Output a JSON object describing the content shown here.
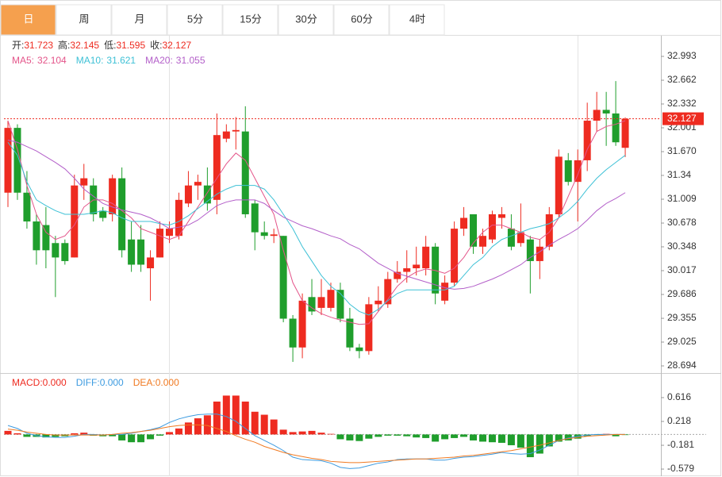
{
  "tabs": [
    "日",
    "周",
    "月",
    "5分",
    "15分",
    "30分",
    "60分",
    "4时"
  ],
  "selected_tab": 0,
  "chart_data": [
    {
      "type": "candlestick",
      "up_color": "#ee2b20",
      "down_color": "#1f9e2c",
      "info": [
        {
          "label": "开:",
          "value": 31.723
        },
        {
          "label": "高:",
          "value": 32.145
        },
        {
          "label": "低:",
          "value": 31.595
        },
        {
          "label": "收:",
          "value": 32.127
        }
      ],
      "last_price": 32.127,
      "ylim": [
        28.617,
        33.28
      ],
      "yticks": [
        32.993,
        32.662,
        32.332,
        32.001,
        {
          "value": 31.67,
          "label": "31.670"
        },
        31.34,
        31.009,
        30.678,
        30.348,
        30.017,
        29.686,
        29.355,
        29.025,
        28.694
      ],
      "open": [
        31.1,
        32.0,
        31.1,
        30.7,
        30.65,
        30.4,
        30.4,
        30.2,
        31.2,
        31.2,
        30.85,
        30.8,
        31.3,
        30.45,
        30.45,
        30.05,
        30.2,
        30.5,
        30.5,
        30.95,
        31.2,
        31.2,
        31.0,
        31.85,
        31.95,
        31.95,
        30.95,
        30.55,
        30.5,
        30.5,
        29.35,
        28.95,
        29.65,
        29.5,
        29.5,
        29.75,
        29.35,
        28.95,
        28.9,
        29.55,
        29.55,
        29.9,
        30.0,
        30.05,
        30.05,
        30.35,
        29.6,
        29.85,
        30.6,
        30.8,
        30.35,
        30.45,
        30.75,
        30.6,
        30.4,
        30.45,
        30.15,
        30.35,
        30.8,
        31.55,
        31.25,
        31.55,
        32.1,
        32.25,
        32.2,
        31.723
      ],
      "high": [
        32.1,
        32.05,
        31.4,
        30.8,
        30.9,
        30.5,
        30.45,
        31.35,
        31.5,
        31.3,
        30.9,
        31.35,
        31.45,
        30.7,
        30.65,
        30.3,
        30.7,
        30.7,
        31.1,
        31.4,
        31.35,
        31.45,
        32.2,
        32.05,
        32.15,
        32.3,
        31.0,
        30.7,
        30.6,
        30.5,
        29.4,
        29.7,
        29.9,
        29.9,
        29.85,
        29.85,
        29.5,
        29.0,
        29.65,
        29.8,
        30.0,
        30.15,
        30.3,
        30.35,
        30.5,
        30.4,
        29.95,
        30.7,
        30.9,
        30.8,
        30.6,
        30.85,
        30.9,
        30.8,
        30.95,
        30.5,
        30.45,
        30.9,
        31.7,
        31.65,
        31.7,
        32.35,
        32.5,
        32.5,
        32.65,
        32.145
      ],
      "low": [
        30.9,
        31.0,
        30.6,
        30.1,
        30.05,
        29.65,
        30.1,
        30.2,
        31.0,
        30.7,
        30.7,
        30.7,
        30.2,
        30.0,
        30.0,
        29.6,
        30.2,
        30.4,
        30.45,
        30.9,
        31.0,
        30.85,
        30.8,
        31.8,
        31.7,
        30.75,
        30.3,
        30.45,
        30.4,
        29.3,
        28.75,
        28.8,
        29.4,
        29.4,
        29.45,
        29.3,
        28.9,
        28.8,
        28.85,
        29.45,
        29.5,
        29.85,
        29.85,
        29.95,
        29.95,
        29.55,
        29.55,
        29.8,
        30.5,
        30.25,
        30.25,
        30.4,
        30.6,
        30.3,
        30.35,
        29.7,
        29.9,
        30.3,
        30.75,
        31.2,
        30.7,
        31.4,
        31.95,
        31.75,
        31.75,
        31.595
      ],
      "close": [
        32.0,
        31.1,
        30.7,
        30.3,
        30.3,
        30.2,
        30.15,
        31.2,
        31.3,
        30.8,
        30.75,
        31.3,
        30.3,
        30.1,
        30.1,
        30.2,
        30.6,
        30.6,
        31.0,
        31.2,
        31.25,
        30.95,
        31.9,
        31.95,
        31.97,
        30.8,
        30.55,
        30.5,
        30.52,
        29.35,
        28.95,
        29.6,
        29.45,
        29.65,
        29.75,
        29.35,
        28.95,
        28.9,
        29.55,
        29.6,
        29.9,
        30.0,
        30.05,
        30.1,
        30.35,
        29.7,
        29.85,
        30.6,
        30.75,
        30.35,
        30.5,
        30.8,
        30.8,
        30.35,
        30.55,
        30.15,
        30.35,
        30.8,
        31.6,
        31.25,
        31.55,
        32.1,
        32.25,
        32.2,
        31.8,
        32.127
      ],
      "series": [
        {
          "name": "MA5:",
          "legend_value": 32.104,
          "color": "#e4558a",
          "values": [
            32.1,
            31.7,
            31.2,
            30.8,
            30.55,
            30.45,
            30.5,
            30.65,
            30.9,
            31.0,
            31.0,
            30.95,
            30.85,
            30.75,
            30.6,
            30.55,
            30.5,
            30.45,
            30.5,
            30.7,
            30.9,
            31.1,
            31.3,
            31.5,
            31.65,
            31.55,
            31.3,
            31.05,
            30.8,
            30.3,
            29.85,
            29.6,
            29.5,
            29.42,
            29.37,
            29.33,
            29.3,
            29.27,
            29.28,
            29.45,
            29.62,
            29.8,
            29.92,
            30.0,
            30.04,
            30.02,
            29.98,
            30.05,
            30.2,
            30.4,
            30.55,
            30.65,
            30.65,
            30.6,
            30.55,
            30.48,
            30.45,
            30.55,
            30.75,
            31.05,
            31.35,
            31.7,
            31.95,
            32.02,
            32.05,
            32.1
          ]
        },
        {
          "name": "MA10:",
          "legend_value": 31.621,
          "color": "#3ec1d6",
          "values": [
            31.8,
            31.62,
            31.25,
            31.0,
            30.92,
            30.85,
            30.8,
            30.8,
            30.8,
            30.82,
            30.85,
            30.82,
            30.75,
            30.7,
            30.7,
            30.7,
            30.67,
            30.65,
            30.7,
            30.78,
            30.88,
            30.98,
            31.08,
            31.15,
            31.2,
            31.2,
            31.2,
            31.15,
            31.0,
            30.8,
            30.6,
            30.35,
            30.15,
            29.95,
            29.8,
            29.7,
            29.55,
            29.45,
            29.4,
            29.48,
            29.6,
            29.7,
            29.75,
            29.75,
            29.75,
            29.75,
            29.75,
            29.8,
            29.95,
            30.1,
            30.2,
            30.35,
            30.45,
            30.5,
            30.55,
            30.6,
            30.63,
            30.67,
            30.75,
            30.85,
            30.98,
            31.15,
            31.3,
            31.42,
            31.52,
            31.62
          ]
        },
        {
          "name": "MA20:",
          "legend_value": 31.055,
          "color": "#b35fc9",
          "values": [
            31.83,
            31.8,
            31.74,
            31.68,
            31.6,
            31.52,
            31.43,
            31.3,
            31.15,
            31.05,
            30.95,
            30.9,
            30.86,
            30.83,
            30.8,
            30.75,
            30.68,
            30.6,
            30.62,
            30.65,
            30.72,
            30.82,
            30.92,
            30.97,
            31.0,
            31.0,
            31.0,
            30.95,
            30.85,
            30.76,
            30.7,
            30.64,
            30.6,
            30.55,
            30.5,
            30.46,
            30.38,
            30.32,
            30.22,
            30.12,
            30.05,
            29.98,
            29.94,
            29.9,
            29.86,
            29.82,
            29.78,
            29.76,
            29.77,
            29.8,
            29.85,
            29.9,
            29.96,
            30.03,
            30.1,
            30.2,
            30.28,
            30.37,
            30.45,
            30.52,
            30.6,
            30.72,
            30.85,
            30.95,
            31.02,
            31.1
          ]
        }
      ]
    },
    {
      "type": "macd",
      "ylim": [
        -0.698,
        0.921
      ],
      "yticks": [
        0.616,
        0.218,
        -0.181,
        -0.579
      ],
      "series": [
        {
          "name": "MACD:",
          "legend_value": {
            "value": 0,
            "label": "0.000"
          },
          "color": "#ee2b20",
          "negative_color": "#1f9e2c",
          "values": [
            0.06,
            0.02,
            -0.04,
            -0.04,
            -0.05,
            -0.04,
            -0.03,
            0.02,
            0.03,
            -0.02,
            -0.03,
            -0.03,
            -0.1,
            -0.13,
            -0.13,
            -0.08,
            -0.02,
            0.04,
            0.1,
            0.2,
            0.27,
            0.32,
            0.55,
            0.65,
            0.65,
            0.55,
            0.38,
            0.33,
            0.25,
            0.08,
            0.04,
            0.05,
            0.06,
            0.03,
            0.01,
            -0.08,
            -0.1,
            -0.11,
            -0.07,
            -0.04,
            -0.02,
            -0.02,
            -0.03,
            -0.05,
            -0.06,
            -0.12,
            -0.08,
            -0.06,
            -0.04,
            -0.1,
            -0.12,
            -0.13,
            -0.14,
            -0.18,
            -0.22,
            -0.38,
            -0.32,
            -0.2,
            -0.12,
            -0.1,
            -0.07,
            -0.03,
            -0.01,
            0.01,
            -0.03,
            -0.01
          ]
        },
        {
          "name": "DIFF:",
          "legend_value": {
            "value": 0,
            "label": "0.000"
          },
          "color": "#3d9be0",
          "values": [
            0.15,
            0.1,
            0.02,
            -0.02,
            -0.04,
            -0.05,
            -0.05,
            -0.03,
            0,
            0,
            -0.01,
            0,
            0,
            0.02,
            0.05,
            0.08,
            0.12,
            0.2,
            0.26,
            0.3,
            0.33,
            0.34,
            0.34,
            0.3,
            0.22,
            0.1,
            -0.02,
            -0.1,
            -0.18,
            -0.27,
            -0.38,
            -0.42,
            -0.43,
            -0.44,
            -0.48,
            -0.55,
            -0.57,
            -0.56,
            -0.52,
            -0.48,
            -0.46,
            -0.42,
            -0.41,
            -0.41,
            -0.41,
            -0.43,
            -0.43,
            -0.4,
            -0.38,
            -0.37,
            -0.35,
            -0.33,
            -0.3,
            -0.32,
            -0.33,
            -0.32,
            -0.26,
            -0.18,
            -0.1,
            -0.06,
            -0.03,
            -0.01,
            0,
            0,
            0,
            0
          ]
        },
        {
          "name": "DEA:",
          "legend_value": {
            "value": 0,
            "label": "0.000"
          },
          "color": "#f07a22",
          "values": [
            0.09,
            0.07,
            0.04,
            0.02,
            0,
            -0.01,
            -0.01,
            -0.01,
            -0.01,
            -0.01,
            -0.01,
            0,
            0.02,
            0.03,
            0.05,
            0.07,
            0.1,
            0.13,
            0.15,
            0.16,
            0.16,
            0.15,
            0.1,
            0.05,
            -0.02,
            -0.08,
            -0.13,
            -0.2,
            -0.25,
            -0.3,
            -0.34,
            -0.37,
            -0.4,
            -0.42,
            -0.45,
            -0.46,
            -0.47,
            -0.47,
            -0.46,
            -0.45,
            -0.44,
            -0.43,
            -0.42,
            -0.41,
            -0.41,
            -0.4,
            -0.39,
            -0.38,
            -0.36,
            -0.35,
            -0.33,
            -0.31,
            -0.29,
            -0.27,
            -0.24,
            -0.21,
            -0.18,
            -0.14,
            -0.1,
            -0.07,
            -0.05,
            -0.03,
            -0.02,
            -0.01,
            0,
            0
          ]
        }
      ]
    }
  ]
}
